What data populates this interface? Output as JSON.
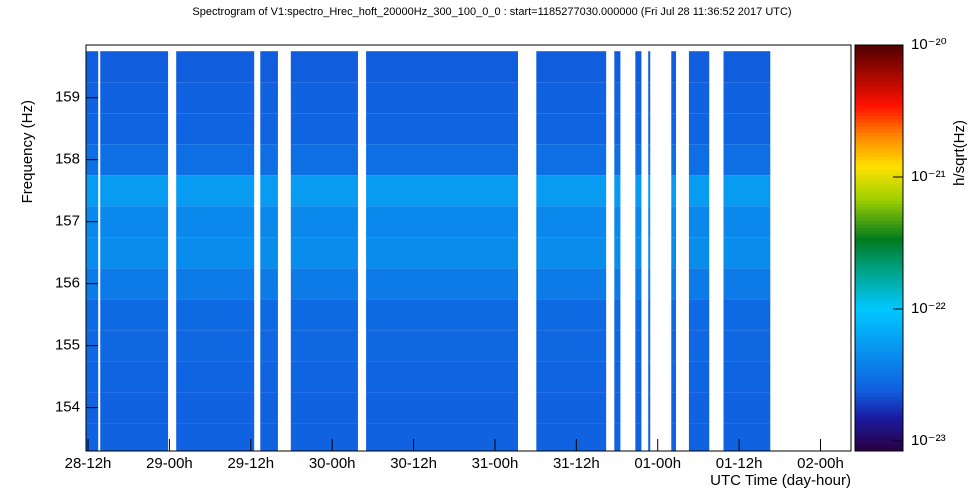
{
  "chart_data": {
    "type": "spectrogram",
    "title": "Spectrogram of V1:spectro_Hrec_hoft_20000Hz_300_100_0_0 : start=1185277030.000000 (Fri Jul 28 11:36:52 2017 UTC)",
    "x_label": "UTC Time (day-hour)",
    "y_label": "Frequency (Hz)",
    "z_label": "h/sqrt(Hz)",
    "xlim": [
      11.7,
      124.5
    ],
    "xticks": [
      {
        "value": 12,
        "label": "28-12h"
      },
      {
        "value": 24,
        "label": "29-00h"
      },
      {
        "value": 36,
        "label": "29-12h"
      },
      {
        "value": 48,
        "label": "30-00h"
      },
      {
        "value": 60,
        "label": "30-12h"
      },
      {
        "value": 72,
        "label": "31-00h"
      },
      {
        "value": 84,
        "label": "31-12h"
      },
      {
        "value": 96,
        "label": "01-00h"
      },
      {
        "value": 108,
        "label": "01-12h"
      },
      {
        "value": 120,
        "label": "02-00h"
      }
    ],
    "ylim": [
      153.3,
      159.85
    ],
    "yticks": [
      154,
      155,
      156,
      157,
      158,
      159
    ],
    "zscale": "log",
    "zlim": [
      8.4e-24,
      1e-20
    ],
    "zticks": [
      {
        "value": 1e-23,
        "label": "10⁻²³"
      },
      {
        "value": 1e-22,
        "label": "10⁻²²"
      },
      {
        "value": 1e-21,
        "label": "10⁻²¹"
      },
      {
        "value": 1e-20,
        "label": "10⁻²⁰"
      }
    ],
    "colormap": [
      "#2a0040",
      "#1a1aa0",
      "#1060e0",
      "#00c8ff",
      "#00a080",
      "#007a20",
      "#a0d000",
      "#ffe000",
      "#ff8000",
      "#ff1000",
      "#500000"
    ],
    "colormap_stops": [
      0,
      0.08,
      0.15,
      0.35,
      0.45,
      0.52,
      0.62,
      0.7,
      0.78,
      0.85,
      1
    ],
    "segments": [
      [
        11.7,
        13.5
      ],
      [
        13.8,
        23.8
      ],
      [
        25.0,
        36.5
      ],
      [
        37.4,
        40.0
      ],
      [
        41.9,
        51.8
      ],
      [
        53.0,
        75.4
      ],
      [
        78.1,
        88.4
      ],
      [
        89.6,
        90.5
      ],
      [
        92.7,
        93.6
      ],
      [
        94.6,
        94.9
      ],
      [
        98.0,
        98.7
      ],
      [
        100.6,
        103.6
      ],
      [
        105.7,
        112.6
      ]
    ],
    "frequencies": [
      153.5,
      154,
      154.5,
      155,
      155.5,
      156,
      156.5,
      157,
      157.5,
      158,
      158.5,
      159,
      159.5
    ],
    "levels": [
      2.5e-23,
      2.5e-23,
      2.6e-23,
      2.7e-23,
      2.8e-23,
      3.5e-23,
      4.5e-23,
      4.2e-23,
      5.5e-23,
      3e-23,
      2.6e-23,
      2.5e-23,
      2.4e-23
    ]
  }
}
